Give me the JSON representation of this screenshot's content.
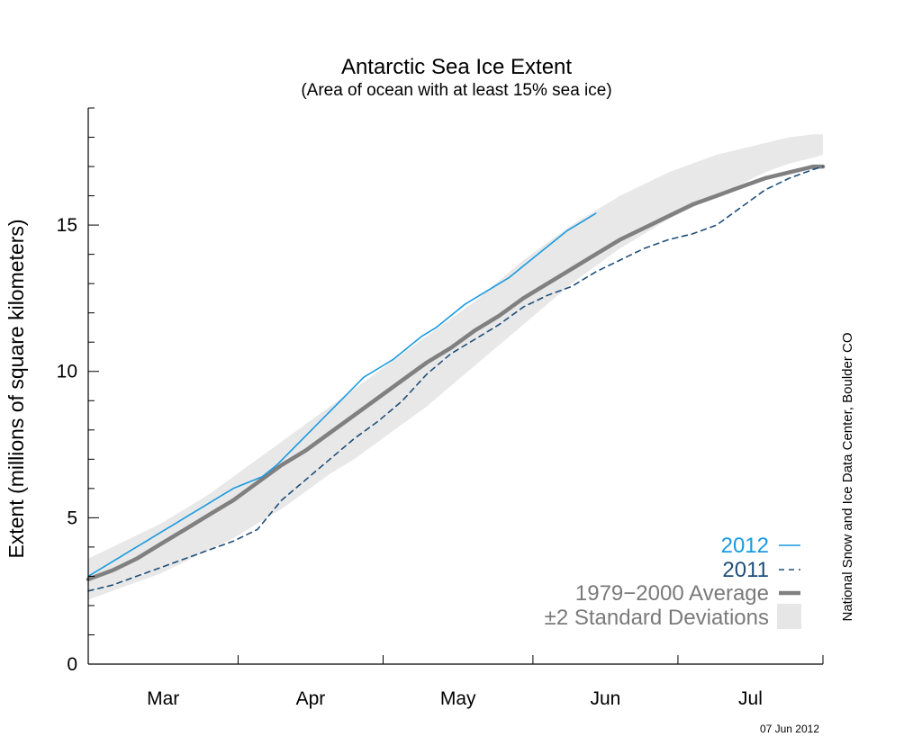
{
  "chart_data": {
    "type": "line",
    "title": "Antarctic Sea Ice Extent",
    "subtitle": "(Area of ocean with at least 15% sea ice)",
    "ylabel": "Extent (millions of square kilometers)",
    "xlabel": "",
    "ylim": [
      0,
      19
    ],
    "yticks": [
      0,
      5,
      10,
      15
    ],
    "x_months": [
      "Mar",
      "Apr",
      "May",
      "Jun",
      "Jul"
    ],
    "xlim_day": [
      0,
      152
    ],
    "month_starts_day": [
      0,
      31,
      61,
      92,
      122,
      152
    ],
    "x_day": [
      0,
      5,
      10,
      15,
      20,
      25,
      30,
      35,
      40,
      45,
      50,
      55,
      60,
      65,
      70,
      75,
      80,
      85,
      90,
      95,
      100,
      105,
      110,
      115,
      120,
      125,
      130,
      135,
      140,
      145,
      150,
      152
    ],
    "band": {
      "lower": [
        2.2,
        2.5,
        2.8,
        3.1,
        3.5,
        3.9,
        4.3,
        4.8,
        5.3,
        5.9,
        6.5,
        7.0,
        7.6,
        8.2,
        8.8,
        9.5,
        10.2,
        10.9,
        11.6,
        12.3,
        13.0,
        13.6,
        14.2,
        14.7,
        15.2,
        15.6,
        16.0,
        16.4,
        16.8,
        17.1,
        17.3,
        17.4
      ],
      "upper": [
        3.6,
        4.0,
        4.4,
        4.8,
        5.3,
        5.8,
        6.4,
        7.0,
        7.6,
        8.2,
        8.8,
        9.4,
        10.0,
        10.6,
        11.2,
        11.8,
        12.4,
        13.1,
        13.8,
        14.4,
        15.0,
        15.5,
        16.0,
        16.4,
        16.8,
        17.1,
        17.4,
        17.6,
        17.8,
        18.0,
        18.1,
        18.1
      ]
    },
    "series": [
      {
        "name": "2012",
        "color": "#1a9ae0",
        "style": "solid",
        "x": [
          0,
          3,
          6,
          9,
          12,
          15,
          18,
          21,
          24,
          27,
          30,
          33,
          36,
          39,
          42,
          45,
          48,
          51,
          54,
          57,
          60,
          63,
          66,
          69,
          72,
          75,
          78,
          81,
          84,
          87,
          90,
          93,
          96,
          99,
          102,
          105
        ],
        "values": [
          3.0,
          3.3,
          3.6,
          3.9,
          4.2,
          4.5,
          4.8,
          5.1,
          5.4,
          5.7,
          6.0,
          6.2,
          6.4,
          6.8,
          7.3,
          7.8,
          8.3,
          8.8,
          9.3,
          9.8,
          10.1,
          10.4,
          10.8,
          11.2,
          11.5,
          11.9,
          12.3,
          12.6,
          12.9,
          13.2,
          13.6,
          14.0,
          14.4,
          14.8,
          15.1,
          15.4
        ]
      },
      {
        "name": "2011",
        "color": "#1f4e79",
        "style": "dashed",
        "x": [
          0,
          5,
          10,
          15,
          20,
          25,
          30,
          35,
          40,
          45,
          50,
          55,
          60,
          65,
          70,
          75,
          80,
          85,
          90,
          95,
          100,
          105,
          110,
          115,
          120,
          125,
          130,
          135,
          140,
          145,
          150,
          152
        ],
        "values": [
          2.5,
          2.7,
          3.0,
          3.3,
          3.6,
          3.9,
          4.2,
          4.6,
          5.6,
          6.3,
          7.0,
          7.7,
          8.3,
          9.0,
          9.9,
          10.6,
          11.1,
          11.6,
          12.2,
          12.6,
          12.9,
          13.4,
          13.8,
          14.2,
          14.5,
          14.7,
          15.0,
          15.6,
          16.2,
          16.6,
          16.9,
          17.0
        ]
      },
      {
        "name": "1979−2000 Average",
        "color": "#808080",
        "style": "thick",
        "x": [
          0,
          5,
          10,
          15,
          20,
          25,
          30,
          35,
          40,
          45,
          50,
          55,
          60,
          65,
          70,
          75,
          80,
          85,
          90,
          95,
          100,
          105,
          110,
          115,
          120,
          125,
          130,
          135,
          140,
          145,
          150,
          152
        ],
        "values": [
          2.9,
          3.2,
          3.6,
          4.1,
          4.6,
          5.1,
          5.6,
          6.2,
          6.8,
          7.3,
          7.9,
          8.5,
          9.1,
          9.7,
          10.3,
          10.8,
          11.4,
          11.9,
          12.5,
          13.0,
          13.5,
          14.0,
          14.5,
          14.9,
          15.3,
          15.7,
          16.0,
          16.3,
          16.6,
          16.8,
          17.0,
          17.0
        ]
      }
    ],
    "legend": {
      "placement": "bottom-right",
      "entries": [
        {
          "label": "2012",
          "color": "#1a9ae0",
          "style": "solid"
        },
        {
          "label": "2011",
          "color": "#1f4e79",
          "style": "dashed"
        },
        {
          "label": "1979−2000 Average",
          "color": "#808080",
          "style": "thick"
        },
        {
          "label": "±2 Standard Deviations",
          "color": "#e6e6e6",
          "style": "band"
        }
      ]
    },
    "grid": false
  },
  "credit": "National Snow and Ice Data Center, Boulder CO",
  "date_stamp": "07 Jun 2012"
}
